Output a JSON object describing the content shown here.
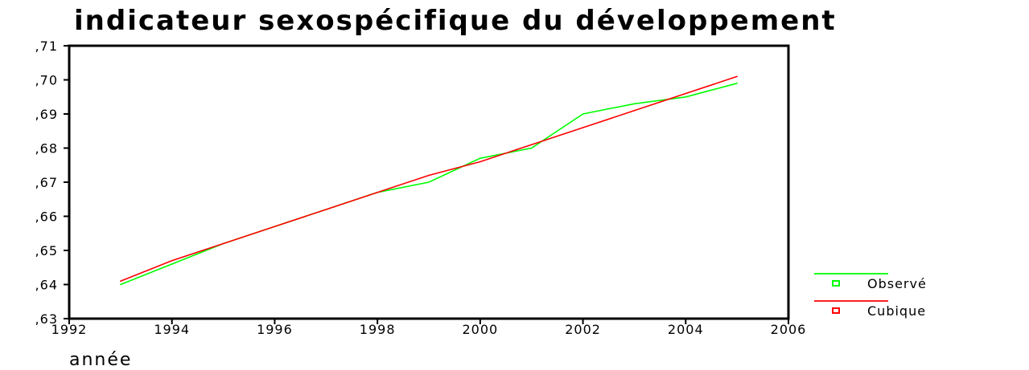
{
  "chart_data": {
    "type": "line",
    "title": "indicateur sexospécifique du développement",
    "xlabel": "année",
    "ylabel": "",
    "xlim": [
      1992,
      2006
    ],
    "ylim": [
      0.63,
      0.71
    ],
    "xticks": [
      1992,
      1994,
      1996,
      1998,
      2000,
      2002,
      2004,
      2006
    ],
    "xtick_labels": [
      "1992",
      "1994",
      "1996",
      "1998",
      "2000",
      "2002",
      "2004",
      "2006"
    ],
    "yticks": [
      0.63,
      0.64,
      0.65,
      0.66,
      0.67,
      0.68,
      0.69,
      0.7,
      0.71
    ],
    "ytick_labels": [
      ",63",
      ",64",
      ",65",
      ",66",
      ",67",
      ",68",
      ",69",
      ",70",
      ",71"
    ],
    "legend_position": "bottom-right",
    "series": [
      {
        "name": "Observé",
        "color": "#00ff00",
        "x": [
          1993,
          1994,
          1995,
          1996,
          1997,
          1998,
          1999,
          2000,
          2001,
          2002,
          2003,
          2004,
          2005
        ],
        "y": [
          0.64,
          0.646,
          0.652,
          0.657,
          0.662,
          0.667,
          0.67,
          0.677,
          0.68,
          0.69,
          0.693,
          0.695,
          0.699
        ]
      },
      {
        "name": "Cubique",
        "color": "#ff0000",
        "x": [
          1993,
          1994,
          1995,
          1996,
          1997,
          1998,
          1999,
          2000,
          2001,
          2002,
          2003,
          2004,
          2005
        ],
        "y": [
          0.641,
          0.647,
          0.652,
          0.657,
          0.662,
          0.667,
          0.672,
          0.676,
          0.681,
          0.686,
          0.691,
          0.696,
          0.701
        ]
      }
    ]
  }
}
